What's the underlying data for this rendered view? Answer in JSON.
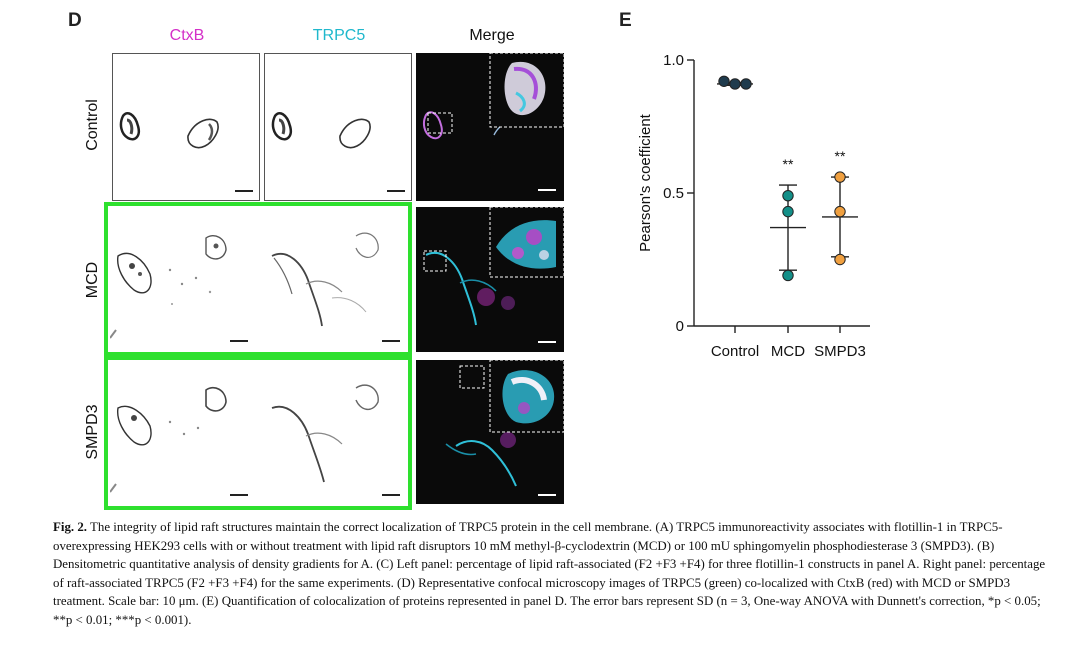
{
  "panel_d": {
    "letter": "D",
    "columns": [
      "CtxB",
      "TRPC5",
      "Merge"
    ],
    "column_colors": [
      "#d42fc8",
      "#1fb8cc",
      "#111111"
    ],
    "rows": [
      "Control",
      "MCD",
      "SMPD3"
    ],
    "highlight_color": "#2ee02e"
  },
  "panel_e": {
    "letter": "E",
    "chart_data": {
      "type": "scatter",
      "categories": [
        "Control",
        "MCD",
        "SMPD3"
      ],
      "ylabel": "Pearson's coefficient",
      "yticks": [
        "0",
        "0.5",
        "1.0"
      ],
      "ylim": [
        0,
        1.0
      ],
      "series": [
        {
          "category": "Control",
          "color": "#1f3b4d",
          "values": [
            0.92,
            0.91,
            0.91
          ],
          "mean": 0.91,
          "sd": 0.005,
          "significance": ""
        },
        {
          "category": "MCD",
          "color": "#138f88",
          "values": [
            0.49,
            0.43,
            0.19
          ],
          "mean": 0.37,
          "sd": 0.16,
          "significance": "**"
        },
        {
          "category": "SMPD3",
          "color": "#f0a040",
          "values": [
            0.56,
            0.43,
            0.25
          ],
          "mean": 0.41,
          "sd": 0.15,
          "significance": "**"
        }
      ]
    }
  },
  "caption": {
    "label": "Fig. 2.",
    "text": "The integrity of lipid raft structures maintain the correct localization of TRPC5 protein in the cell membrane. (A) TRPC5 immunoreactivity associates with flotillin-1 in TRPC5-overexpressing HEK293 cells with or without treatment with lipid raft disruptors 10 mM methyl-β-cyclodextrin (MCD) or 100 mU sphingomyelin phosphodiesterase 3 (SMPD3). (B) Densitometric quantitative analysis of density gradients for A. (C) Left panel: percentage of lipid raft-associated (F2 +F3 +F4) for three flotillin-1 constructs in panel A. Right panel: percentage of raft-associated TRPC5 (F2 +F3 +F4) for the same experiments. (D) Representative confocal microscopy images of TRPC5 (green) co-localized with CtxB (red) with MCD or SMPD3 treatment. Scale bar: 10 μm. (E) Quantification of colocalization of proteins represented in panel D. The error bars represent SD (n = 3, One-way ANOVA with Dunnett's correction, *p < 0.05; **p < 0.01; ***p < 0.001)."
  }
}
